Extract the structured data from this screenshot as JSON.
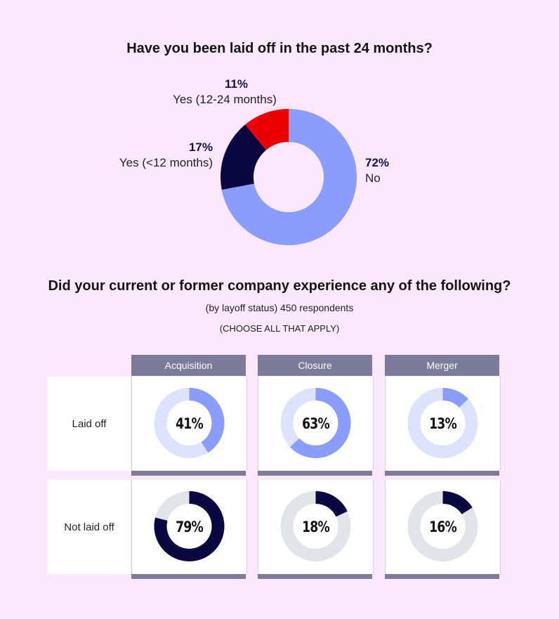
{
  "chart_data": [
    {
      "type": "pie",
      "title": "Have you been laid off in the past 24 months?",
      "categories": [
        "No",
        "Yes (<12 months)",
        "Yes (12-24 months)"
      ],
      "values": [
        72,
        17,
        11
      ],
      "value_labels": [
        "72%",
        "17%",
        "11%"
      ],
      "colors": [
        "#8a9dfb",
        "#0b0740",
        "#ee0000"
      ]
    },
    {
      "type": "pie",
      "title": "Did your current or former company experience any of the following?",
      "subtitle": "(by layoff status) 450 respondents",
      "note": "(CHOOSE ALL THAT APPLY)",
      "columns": [
        "Acquisition",
        "Closure",
        "Merger"
      ],
      "rows": [
        "Laid off",
        "Not laid off"
      ],
      "values": [
        [
          41,
          63,
          13
        ],
        [
          79,
          18,
          16
        ]
      ],
      "value_labels": [
        [
          "41%",
          "63%",
          "13%"
        ],
        [
          "79%",
          "18%",
          "16%"
        ]
      ],
      "colors": {
        "laid_off_fill": "#8a9dfb",
        "laid_off_track": "#dde3fe",
        "not_laid_off_fill": "#0b0740",
        "not_laid_off_track": "#e3e3ea"
      }
    }
  ]
}
